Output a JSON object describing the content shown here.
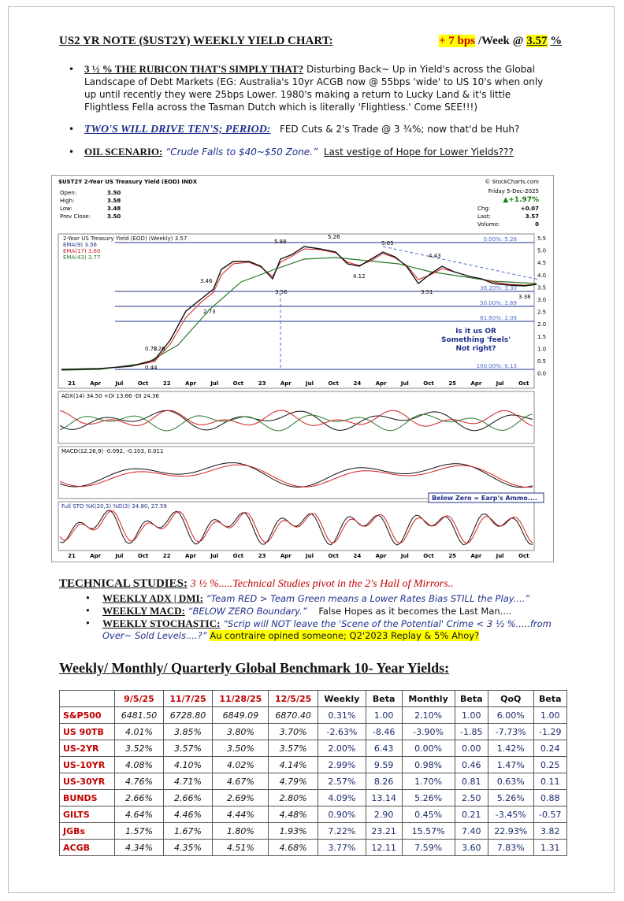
{
  "header": {
    "title": "US2 YR NOTE ($UST2Y) WEEKLY YIELD CHART:",
    "change": "+ 7 bps",
    "per": "/Week @",
    "level": "3.57",
    "unit": "%"
  },
  "bullets": [
    {
      "lead": "3 ½ % THE RUBICON THAT'S SIMPLY THAT?",
      "text": "Disturbing Back~ Up in Yield's across the Global Landscape of Debt Markets (EG: Australia's 10yr ACGB now @ 55bps 'wide' to US 10's when only up until recently they were 25bps Lower. 1980's making a return to Lucky Land & it's little Flightless Fella across the Tasman Dutch which is literally 'Flightless.' Come SEE!!!)"
    },
    {
      "lead": "TWO'S WILL DRIVE TEN'S; PERIOD:",
      "text": "FED Cuts & 2's Trade @ 3 ¾%; now that'd be Huh?"
    },
    {
      "lead": "OIL SCENARIO:",
      "quote": "“Crude Falls to $40~$50 Zone.”",
      "text": "Last vestige of Hope for Lower Yields???"
    }
  ],
  "chart": {
    "title": "$UST2Y 2-Year US Treasury Yield (EOD) INDX",
    "source": "© StockCharts.com",
    "date": "Friday  5-Dec-2025",
    "change_pct": "▲+1.97%",
    "quote": [
      [
        "Open:",
        "3.50"
      ],
      [
        "High:",
        "3.58"
      ],
      [
        "Low:",
        "3.48"
      ],
      [
        "Prev Close:",
        "3.50"
      ],
      [
        "Chg:",
        "+0.07"
      ],
      [
        "Last:",
        "3.57"
      ],
      [
        "Volume:",
        "0"
      ]
    ],
    "legend": [
      "2-Year US Treasury Yield (EOD) (Weekly) 3.57",
      "EMA(9) 3.56",
      "EMA(17) 3.60",
      "EMA(43) 3.77"
    ],
    "fib_labels": [
      "0.00%: 5.26",
      "38.20%: 3.30",
      "50.00%: 2.69",
      "61.80%: 2.09",
      "100.00%: 0.13"
    ],
    "price_labels": [
      "5.88",
      "5.26",
      "5.05",
      "4.43",
      "4.12",
      "3.46",
      "2.73",
      "3.56",
      "3.51",
      "3.38",
      "0.73",
      "1.26",
      "0.44"
    ],
    "yaxis": [
      "5.5",
      "5.0",
      "4.5",
      "4.0",
      "3.5",
      "3.0",
      "2.5",
      "2.0",
      "1.5",
      "1.0",
      "0.5",
      "0.0"
    ],
    "xaxis": [
      "21",
      "Apr",
      "Jul",
      "Oct",
      "22",
      "Apr",
      "Jul",
      "Oct",
      "23",
      "Apr",
      "Jul",
      "Oct",
      "24",
      "Apr",
      "Jul",
      "Oct",
      "25",
      "Apr",
      "Jul",
      "Oct"
    ],
    "note": [
      "Is it us OR",
      "Something 'feels'",
      "Not right?"
    ],
    "adx_label": "ADX(14) 34.50 +DI 13.66 -DI 24.36",
    "macd_label": "MACD(12,26,9) -0.092, -0.103, 0.011",
    "macd_note": "Below Zero = Earp's Ammo....",
    "sto_label": "Full STO %K(20,3) %D(3) 24.80, 27.59"
  },
  "studies": {
    "title": "TECHNICAL STUDIES:",
    "subtitle": "3 ½ %.....Technical Studies pivot in the 2's Hall of Mirrors..",
    "items": [
      {
        "lead": "WEEKLY ADX | DMI:",
        "quote": "“Team RED > Team Green means a Lower Rates Bias STILL the Play....”"
      },
      {
        "lead": "WEEKLY MACD:",
        "quote": "“BELOW ZERO Boundary.”",
        "text": "False Hopes as it becomes the Last Man...."
      },
      {
        "lead": "WEEKLY STOCHASTIC:",
        "quote": "“Scrip will NOT leave the 'Scene of the Potential' Crime < 3 ½ %.....from Over~ Sold Levels....?”",
        "text": "Au contraire opined someone; Q2'2023 Replay & 5% Ahoy?"
      }
    ]
  },
  "table": {
    "title": "Weekly/ Monthly/ Quarterly Global Benchmark 10- Year Yields:",
    "columns": [
      "9/5/25",
      "11/7/25",
      "11/28/25",
      "12/5/25",
      "Weekly",
      "Beta",
      "Monthly",
      "Beta",
      "QoQ",
      "Beta"
    ],
    "rows": [
      [
        "S&P500",
        "6481.50",
        "6728.80",
        "6849.09",
        "6870.40",
        "0.31%",
        "1.00",
        "2.10%",
        "1.00",
        "6.00%",
        "1.00"
      ],
      [
        "US 90TB",
        "4.01%",
        "3.85%",
        "3.80%",
        "3.70%",
        "-2.63%",
        "-8.46",
        "-3.90%",
        "-1.85",
        "-7.73%",
        "-1.29"
      ],
      [
        "US-2YR",
        "3.52%",
        "3.57%",
        "3.50%",
        "3.57%",
        "2.00%",
        "6.43",
        "0.00%",
        "0.00",
        "1.42%",
        "0.24"
      ],
      [
        "US-10YR",
        "4.08%",
        "4.10%",
        "4.02%",
        "4.14%",
        "2.99%",
        "9.59",
        "0.98%",
        "0.46",
        "1.47%",
        "0.25"
      ],
      [
        "US-30YR",
        "4.76%",
        "4.71%",
        "4.67%",
        "4.79%",
        "2.57%",
        "8.26",
        "1.70%",
        "0.81",
        "0.63%",
        "0.11"
      ],
      [
        "BUNDS",
        "2.66%",
        "2.66%",
        "2.69%",
        "2.80%",
        "4.09%",
        "13.14",
        "5.26%",
        "2.50",
        "5.26%",
        "0.88"
      ],
      [
        "GILTS",
        "4.64%",
        "4.46%",
        "4.44%",
        "4.48%",
        "0.90%",
        "2.90",
        "0.45%",
        "0.21",
        "-3.45%",
        "-0.57"
      ],
      [
        "JGBs",
        "1.57%",
        "1.67%",
        "1.80%",
        "1.93%",
        "7.22%",
        "23.21",
        "15.57%",
        "7.40",
        "22.93%",
        "3.82"
      ],
      [
        "ACGB",
        "4.34%",
        "4.35%",
        "4.51%",
        "4.68%",
        "3.77%",
        "12.11",
        "7.59%",
        "3.60",
        "7.83%",
        "1.31"
      ]
    ]
  }
}
